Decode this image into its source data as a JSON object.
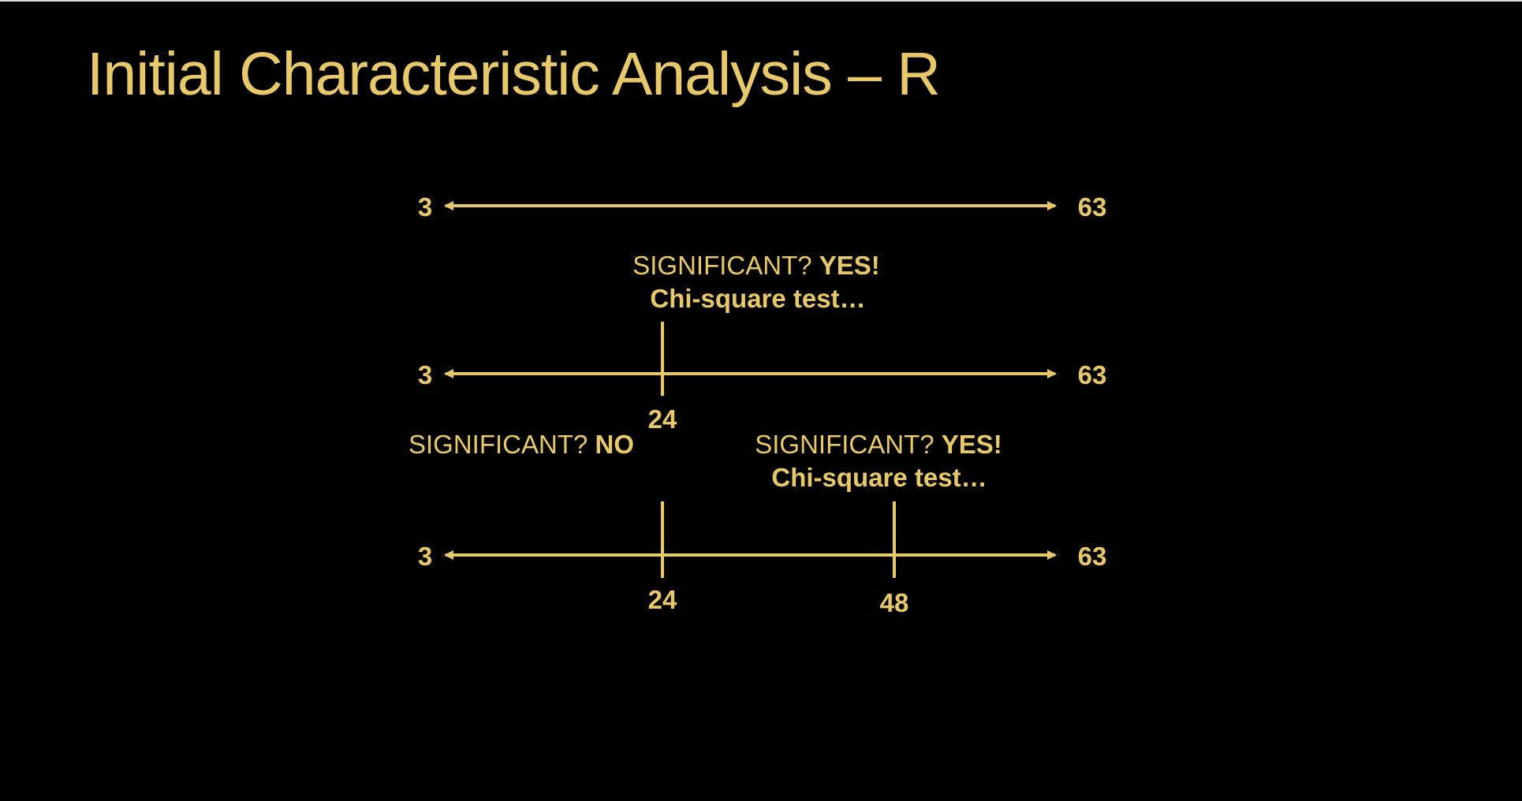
{
  "slide": {
    "title": "Initial Characteristic Analysis – R"
  },
  "colors": {
    "background": "#000000",
    "accent": "#E8C96A"
  },
  "diagram": {
    "rows": [
      {
        "left_label": "3",
        "right_label": "63",
        "splits": []
      },
      {
        "left_label": "3",
        "right_label": "63",
        "splits": [
          "24"
        ]
      },
      {
        "left_label": "3",
        "right_label": "63",
        "splits": [
          "24",
          "48"
        ]
      }
    ],
    "annotations": [
      {
        "prefix": "SIGNIFICANT? ",
        "answer": "YES!",
        "test": "Chi-square test…"
      },
      {
        "prefix": "SIGNIFICANT? ",
        "answer": "NO"
      },
      {
        "prefix": "SIGNIFICANT? ",
        "answer": "YES!",
        "test": "Chi-square test…"
      }
    ]
  }
}
